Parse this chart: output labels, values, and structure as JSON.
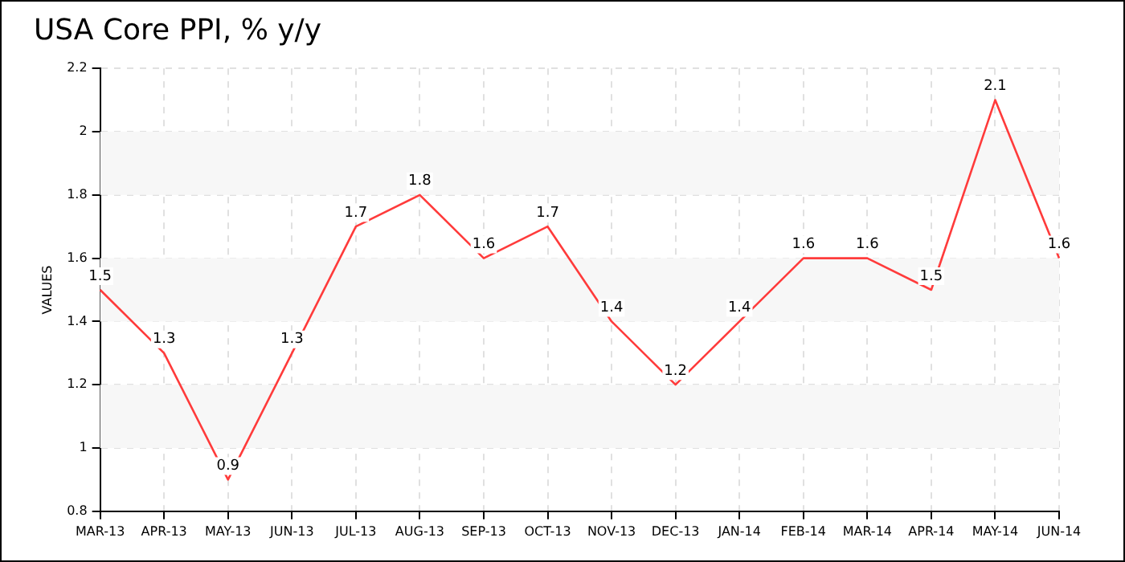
{
  "chart_data": {
    "type": "line",
    "title": "USA Core PPI, % y/y",
    "ylabel": "VALUES",
    "categories": [
      "MAR-13",
      "APR-13",
      "MAY-13",
      "JUN-13",
      "JUL-13",
      "AUG-13",
      "SEP-13",
      "OCT-13",
      "NOV-13",
      "DEC-13",
      "JAN-14",
      "FEB-14",
      "MAR-14",
      "APR-14",
      "MAY-14",
      "JUN-14"
    ],
    "series": [
      {
        "color": "#ff3b3b",
        "values": [
          1.5,
          1.3,
          0.9,
          1.3,
          1.7,
          1.8,
          1.6,
          1.7,
          1.4,
          1.2,
          1.4,
          1.6,
          1.6,
          1.5,
          2.1,
          1.6
        ]
      }
    ],
    "ylim": [
      0.8,
      2.2
    ],
    "yticks": [
      0.8,
      1,
      1.2,
      1.4,
      1.6,
      1.8,
      2,
      2.2
    ],
    "grid": true,
    "legend": false,
    "marker": "none",
    "line_style": "solid",
    "data_labels": true
  }
}
